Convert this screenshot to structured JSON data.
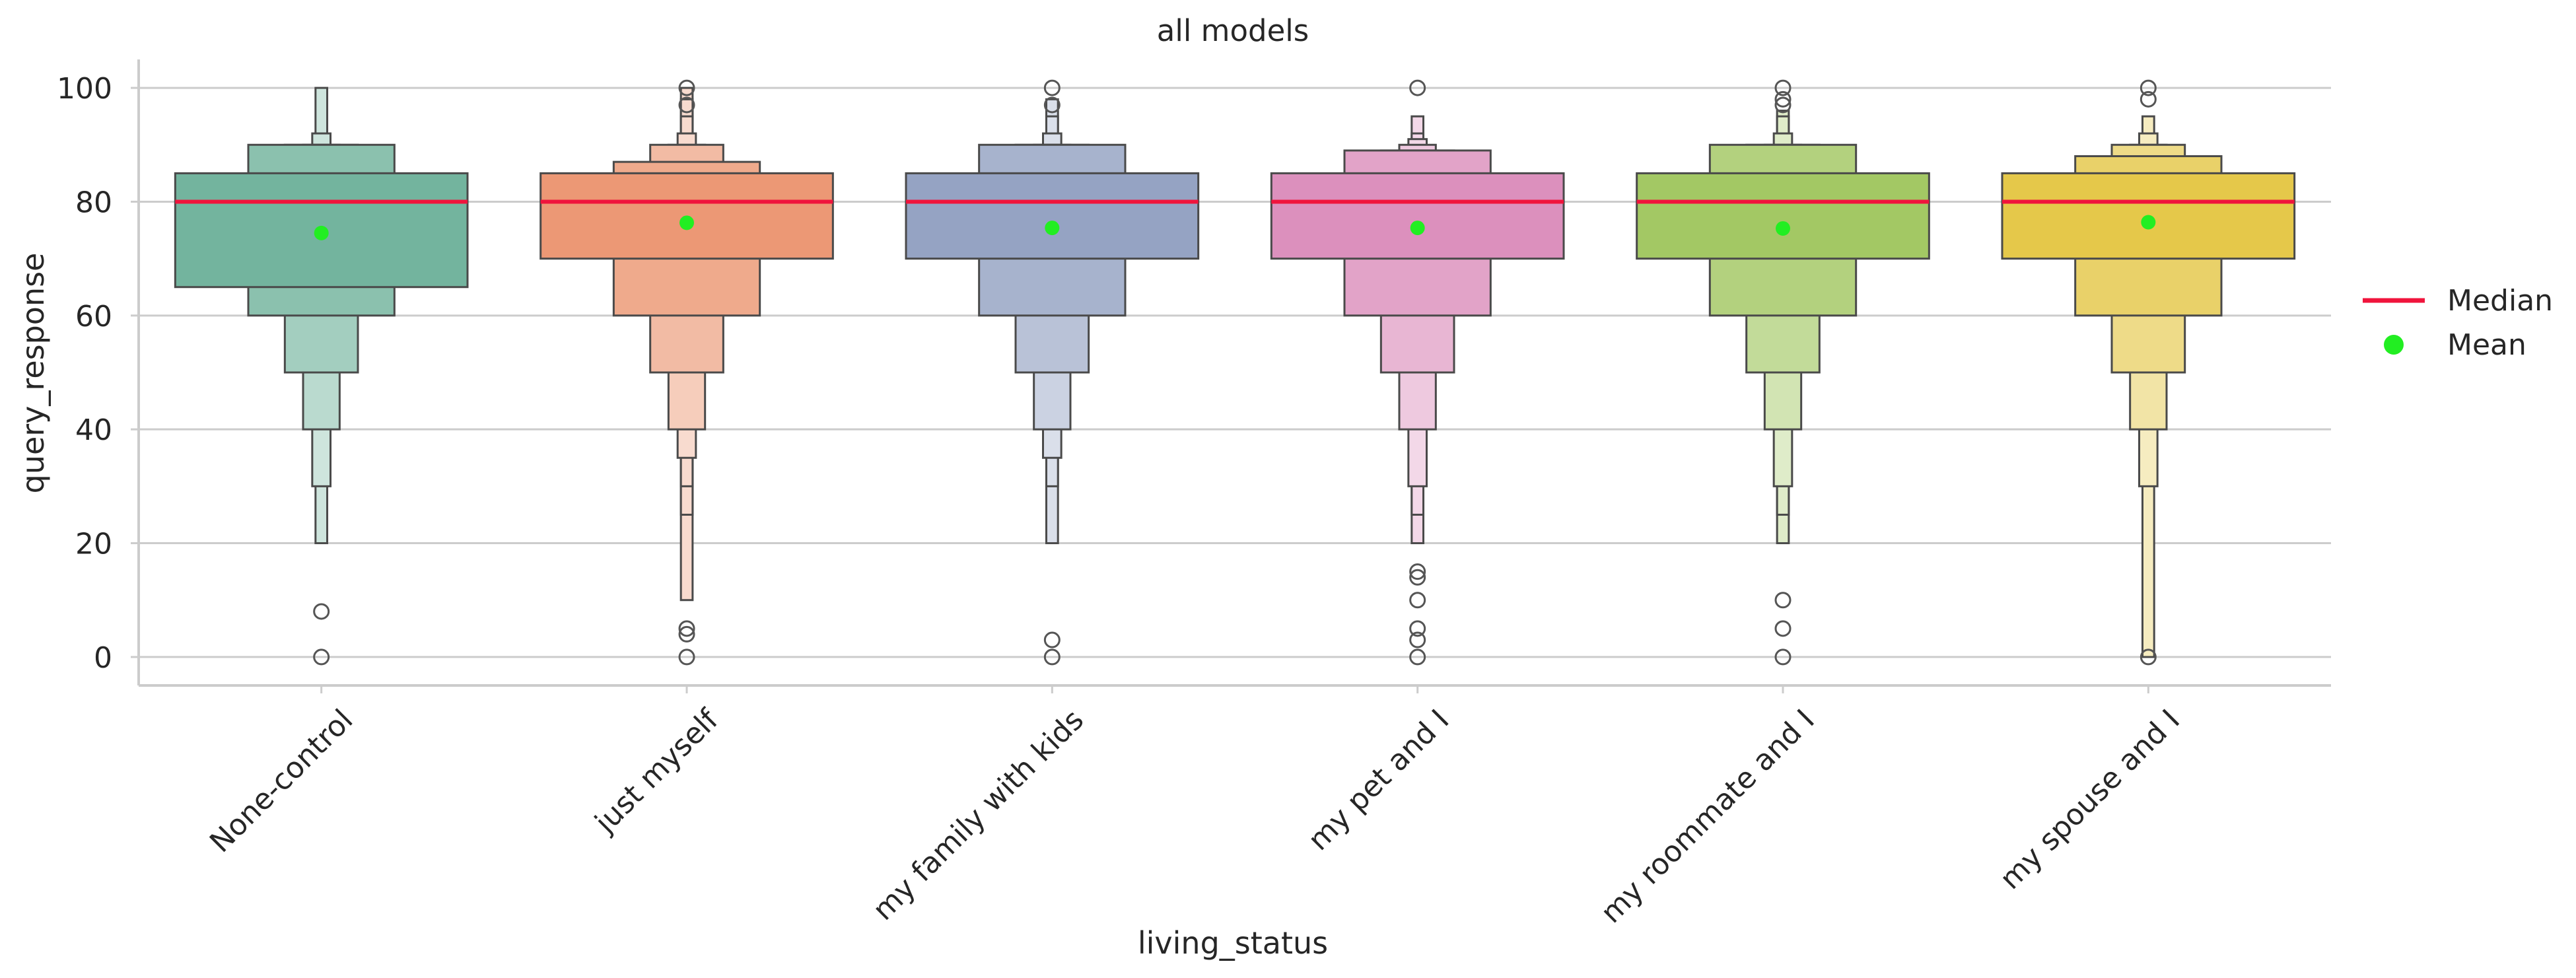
{
  "chart_data": {
    "type": "boxen",
    "title": "all models",
    "xlabel": "living_status",
    "ylabel": "query_response",
    "ylim": [
      -5,
      105
    ],
    "yticks": [
      0,
      20,
      40,
      60,
      80,
      100
    ],
    "grid": "horizontal",
    "legend": {
      "placement": "right",
      "entries": [
        {
          "label": "Median",
          "kind": "line",
          "color": "#f0143c"
        },
        {
          "label": "Mean",
          "kind": "dot",
          "color": "#22ee22"
        }
      ]
    },
    "categories": [
      "None-control",
      "just myself",
      "my family with kids",
      "my pet and I",
      "my roommate and I",
      "my spouse and I"
    ],
    "colors": [
      "#73b49e",
      "#ec9875",
      "#95a3c3",
      "#dc90bd",
      "#a3c864",
      "#e5c84a"
    ],
    "series": [
      {
        "category": "None-control",
        "median": 80,
        "mean": 74.5,
        "levels": [
          [
            65,
            85
          ],
          [
            60,
            90
          ],
          [
            50,
            90
          ],
          [
            40,
            90
          ],
          [
            30,
            92
          ],
          [
            20,
            100
          ]
        ],
        "outliers": [
          8,
          0
        ]
      },
      {
        "category": "just myself",
        "median": 80,
        "mean": 76.3,
        "levels": [
          [
            70,
            85
          ],
          [
            60,
            87
          ],
          [
            50,
            90
          ],
          [
            40,
            90
          ],
          [
            35,
            92
          ],
          [
            30,
            95
          ],
          [
            25,
            98
          ],
          [
            10,
            100
          ]
        ],
        "outliers": [
          100,
          97,
          5,
          4,
          0
        ]
      },
      {
        "category": "my family with kids",
        "median": 80,
        "mean": 75.4,
        "levels": [
          [
            70,
            85
          ],
          [
            60,
            90
          ],
          [
            50,
            90
          ],
          [
            40,
            90
          ],
          [
            35,
            92
          ],
          [
            30,
            95
          ],
          [
            20,
            98
          ]
        ],
        "outliers": [
          100,
          97,
          3,
          0
        ]
      },
      {
        "category": "my pet and I",
        "median": 80,
        "mean": 75.4,
        "levels": [
          [
            70,
            85
          ],
          [
            60,
            89
          ],
          [
            50,
            89
          ],
          [
            40,
            90
          ],
          [
            30,
            91
          ],
          [
            25,
            92
          ],
          [
            20,
            95
          ]
        ],
        "outliers": [
          100,
          15,
          14,
          10,
          5,
          3,
          0
        ]
      },
      {
        "category": "my roommate and I",
        "median": 80,
        "mean": 75.3,
        "levels": [
          [
            70,
            85
          ],
          [
            60,
            90
          ],
          [
            50,
            90
          ],
          [
            40,
            90
          ],
          [
            30,
            92
          ],
          [
            25,
            95
          ],
          [
            20,
            96
          ]
        ],
        "outliers": [
          100,
          98,
          97,
          10,
          5,
          0
        ]
      },
      {
        "category": "my spouse and I",
        "median": 80,
        "mean": 76.4,
        "levels": [
          [
            70,
            85
          ],
          [
            60,
            88
          ],
          [
            50,
            90
          ],
          [
            40,
            90
          ],
          [
            30,
            92
          ],
          [
            0,
            95
          ]
        ],
        "outliers": [
          100,
          98,
          0
        ]
      }
    ]
  }
}
